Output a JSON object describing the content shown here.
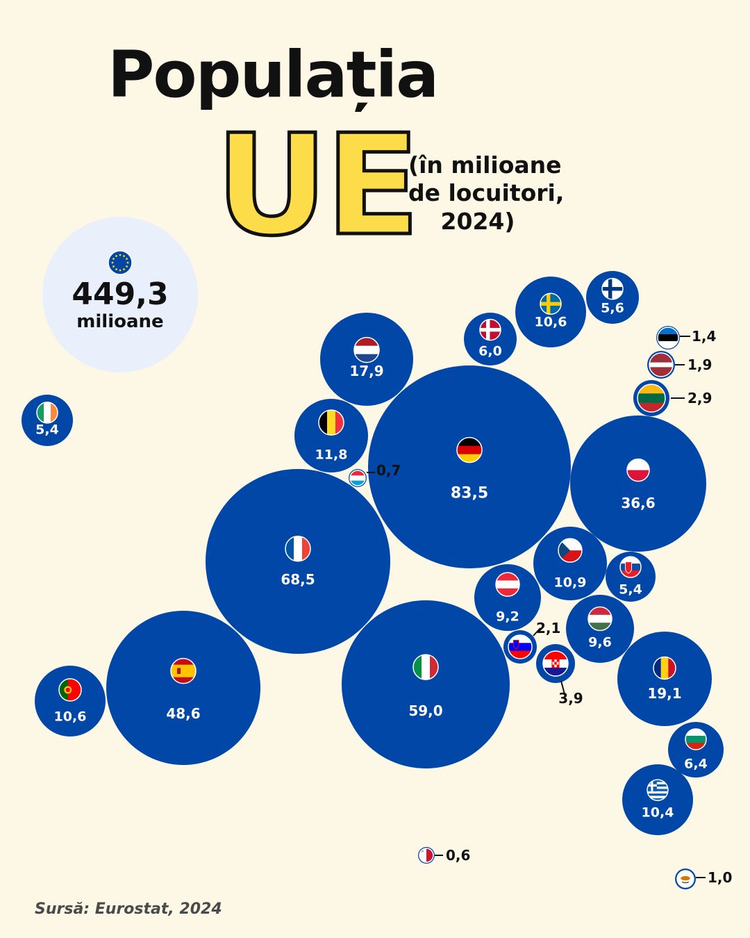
{
  "title": {
    "line1": "Populația",
    "line2": "UE"
  },
  "subtitle": {
    "line1": "(în milioane",
    "line2": "de locuitori,",
    "line3": "2024)"
  },
  "total": {
    "value": "449,3",
    "unit": "milioane",
    "icon": "eu-flag-icon"
  },
  "source": "Sursă: Eurostat, 2024",
  "colors": {
    "background": "#fdf8e6",
    "bubble": "#0047a8",
    "total_bubble": "#eaf0fb",
    "title_yellow": "#fddc4a"
  },
  "chart_data": {
    "type": "bubble",
    "unit": "milioane de locuitori",
    "year": 2024,
    "total": 449.3,
    "values": [
      {
        "country": "DE",
        "label": "83,5",
        "value": 83.5
      },
      {
        "country": "FR",
        "label": "68,5",
        "value": 68.5
      },
      {
        "country": "IT",
        "label": "59,0",
        "value": 59.0
      },
      {
        "country": "ES",
        "label": "48,6",
        "value": 48.6
      },
      {
        "country": "PL",
        "label": "36,6",
        "value": 36.6
      },
      {
        "country": "RO",
        "label": "19,1",
        "value": 19.1
      },
      {
        "country": "NL",
        "label": "17,9",
        "value": 17.9
      },
      {
        "country": "BE",
        "label": "11,8",
        "value": 11.8
      },
      {
        "country": "CZ",
        "label": "10,9",
        "value": 10.9
      },
      {
        "country": "SE",
        "label": "10,6",
        "value": 10.6
      },
      {
        "country": "PT",
        "label": "10,6",
        "value": 10.6
      },
      {
        "country": "GR",
        "label": "10,4",
        "value": 10.4
      },
      {
        "country": "HU",
        "label": "9,6",
        "value": 9.6
      },
      {
        "country": "AT",
        "label": "9,2",
        "value": 9.2
      },
      {
        "country": "BG",
        "label": "6,4",
        "value": 6.4
      },
      {
        "country": "DK",
        "label": "6,0",
        "value": 6.0
      },
      {
        "country": "FI",
        "label": "5,6",
        "value": 5.6
      },
      {
        "country": "SK",
        "label": "5,4",
        "value": 5.4
      },
      {
        "country": "IE",
        "label": "5,4",
        "value": 5.4
      },
      {
        "country": "HR",
        "label": "3,9",
        "value": 3.9
      },
      {
        "country": "LT",
        "label": "2,9",
        "value": 2.9
      },
      {
        "country": "SI",
        "label": "2,1",
        "value": 2.1
      },
      {
        "country": "LV",
        "label": "1,9",
        "value": 1.9
      },
      {
        "country": "EE",
        "label": "1,4",
        "value": 1.4
      },
      {
        "country": "CY",
        "label": "1,0",
        "value": 1.0
      },
      {
        "country": "LU",
        "label": "0,7",
        "value": 0.7
      },
      {
        "country": "MT",
        "label": "0,6",
        "value": 0.6
      }
    ]
  }
}
